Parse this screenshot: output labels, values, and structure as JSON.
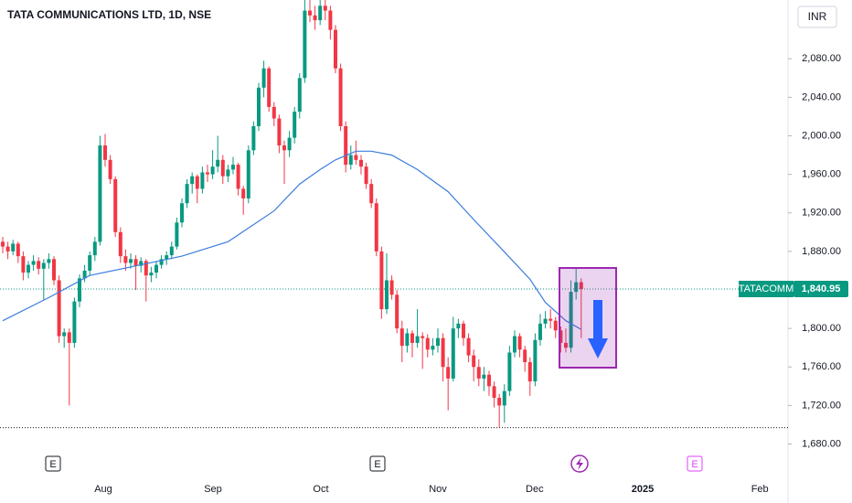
{
  "chart_data": {
    "type": "candlestick",
    "title": "TATA COMMUNICATIONS LTD, 1D, NSE",
    "currency": "INR",
    "up_color": "#089981",
    "down_color": "#f23645",
    "candles": [
      [
        1890,
        1895,
        1878,
        1885
      ],
      [
        1885,
        1890,
        1872,
        1880
      ],
      [
        1880,
        1892,
        1876,
        1888
      ],
      [
        1888,
        1890,
        1868,
        1875
      ],
      [
        1875,
        1880,
        1850,
        1858
      ],
      [
        1858,
        1870,
        1852,
        1866
      ],
      [
        1866,
        1876,
        1860,
        1870
      ],
      [
        1870,
        1874,
        1856,
        1862
      ],
      [
        1862,
        1872,
        1830,
        1868
      ],
      [
        1868,
        1878,
        1862,
        1872
      ],
      [
        1872,
        1875,
        1845,
        1850
      ],
      [
        1850,
        1855,
        1785,
        1792
      ],
      [
        1792,
        1800,
        1780,
        1796
      ],
      [
        1796,
        1800,
        1720,
        1785
      ],
      [
        1785,
        1832,
        1780,
        1828
      ],
      [
        1828,
        1856,
        1822,
        1852
      ],
      [
        1852,
        1866,
        1848,
        1860
      ],
      [
        1860,
        1880,
        1855,
        1876
      ],
      [
        1876,
        1895,
        1870,
        1890
      ],
      [
        1890,
        2000,
        1886,
        1990
      ],
      [
        1990,
        2002,
        1968,
        1975
      ],
      [
        1975,
        1980,
        1950,
        1955
      ],
      [
        1955,
        1958,
        1895,
        1900
      ],
      [
        1900,
        1905,
        1868,
        1875
      ],
      [
        1875,
        1882,
        1860,
        1868
      ],
      [
        1868,
        1878,
        1862,
        1872
      ],
      [
        1872,
        1876,
        1840,
        1865
      ],
      [
        1865,
        1874,
        1858,
        1870
      ],
      [
        1870,
        1872,
        1828,
        1855
      ],
      [
        1855,
        1864,
        1848,
        1858
      ],
      [
        1858,
        1870,
        1852,
        1866
      ],
      [
        1866,
        1876,
        1862,
        1872
      ],
      [
        1872,
        1880,
        1866,
        1876
      ],
      [
        1876,
        1890,
        1872,
        1885
      ],
      [
        1885,
        1915,
        1882,
        1910
      ],
      [
        1910,
        1935,
        1905,
        1930
      ],
      [
        1930,
        1955,
        1925,
        1950
      ],
      [
        1950,
        1962,
        1940,
        1958
      ],
      [
        1958,
        1960,
        1930,
        1945
      ],
      [
        1945,
        1968,
        1940,
        1962
      ],
      [
        1962,
        1970,
        1952,
        1960
      ],
      [
        1960,
        1985,
        1955,
        1968
      ],
      [
        1968,
        2000,
        1962,
        1975
      ],
      [
        1975,
        1980,
        1950,
        1958
      ],
      [
        1958,
        1970,
        1952,
        1965
      ],
      [
        1965,
        1978,
        1960,
        1970
      ],
      [
        1970,
        1972,
        1938,
        1945
      ],
      [
        1945,
        1948,
        1918,
        1935
      ],
      [
        1935,
        1990,
        1930,
        1985
      ],
      [
        1985,
        2015,
        1980,
        2010
      ],
      [
        2010,
        2055,
        2005,
        2050
      ],
      [
        2050,
        2078,
        2040,
        2070
      ],
      [
        2070,
        2072,
        2025,
        2030
      ],
      [
        2030,
        2035,
        2010,
        2018
      ],
      [
        2018,
        2022,
        1982,
        1990
      ],
      [
        1990,
        1995,
        1950,
        1985
      ],
      [
        1985,
        2005,
        1978,
        1998
      ],
      [
        1998,
        2030,
        1992,
        2025
      ],
      [
        2025,
        2065,
        2018,
        2060
      ],
      [
        2060,
        2141,
        2055,
        2130
      ],
      [
        2130,
        2141,
        2118,
        2125
      ],
      [
        2125,
        2135,
        2110,
        2120
      ],
      [
        2120,
        2141,
        2115,
        2135
      ],
      [
        2135,
        2141,
        2120,
        2130
      ],
      [
        2130,
        2135,
        2100,
        2110
      ],
      [
        2110,
        2115,
        2065,
        2070
      ],
      [
        2070,
        2075,
        2005,
        2010
      ],
      [
        2010,
        2015,
        1962,
        1970
      ],
      [
        1970,
        1990,
        1965,
        1980
      ],
      [
        1980,
        1995,
        1970,
        1975
      ],
      [
        1975,
        1980,
        1960,
        1968
      ],
      [
        1968,
        1972,
        1945,
        1950
      ],
      [
        1950,
        1955,
        1925,
        1930
      ],
      [
        1930,
        1935,
        1875,
        1880
      ],
      [
        1880,
        1885,
        1810,
        1820
      ],
      [
        1820,
        1878,
        1815,
        1850
      ],
      [
        1850,
        1855,
        1830,
        1835
      ],
      [
        1835,
        1840,
        1795,
        1800
      ],
      [
        1800,
        1808,
        1765,
        1782
      ],
      [
        1782,
        1800,
        1775,
        1795
      ],
      [
        1795,
        1798,
        1770,
        1785
      ],
      [
        1785,
        1820,
        1780,
        1792
      ],
      [
        1792,
        1796,
        1758,
        1790
      ],
      [
        1790,
        1794,
        1770,
        1778
      ],
      [
        1778,
        1790,
        1772,
        1782
      ],
      [
        1782,
        1800,
        1775,
        1790
      ],
      [
        1790,
        1795,
        1745,
        1760
      ],
      [
        1760,
        1770,
        1715,
        1748
      ],
      [
        1748,
        1812,
        1745,
        1800
      ],
      [
        1800,
        1810,
        1790,
        1805
      ],
      [
        1805,
        1808,
        1782,
        1790
      ],
      [
        1790,
        1795,
        1765,
        1772
      ],
      [
        1772,
        1778,
        1745,
        1760
      ],
      [
        1760,
        1768,
        1740,
        1748
      ],
      [
        1748,
        1760,
        1735,
        1752
      ],
      [
        1752,
        1756,
        1730,
        1740
      ],
      [
        1740,
        1745,
        1718,
        1728
      ],
      [
        1728,
        1732,
        1697,
        1720
      ],
      [
        1720,
        1742,
        1702,
        1735
      ],
      [
        1735,
        1782,
        1730,
        1775
      ],
      [
        1775,
        1798,
        1770,
        1792
      ],
      [
        1792,
        1795,
        1770,
        1778
      ],
      [
        1778,
        1782,
        1755,
        1765
      ],
      [
        1765,
        1770,
        1730,
        1745
      ],
      [
        1745,
        1795,
        1740,
        1788
      ],
      [
        1788,
        1815,
        1782,
        1805
      ],
      [
        1805,
        1818,
        1800,
        1810
      ],
      [
        1810,
        1820,
        1800,
        1808
      ],
      [
        1808,
        1812,
        1790,
        1798
      ],
      [
        1798,
        1802,
        1775,
        1785
      ],
      [
        1785,
        1800,
        1775,
        1780
      ],
      [
        1780,
        1850,
        1775,
        1838
      ],
      [
        1838,
        1862,
        1830,
        1848
      ],
      [
        1848,
        1852,
        1790,
        1840.95
      ]
    ],
    "moving_average": {
      "color": "#3b7ddd",
      "x": [
        0,
        9,
        17,
        26,
        35,
        44,
        53,
        58,
        62,
        65,
        69,
        72,
        76,
        81,
        87,
        92,
        97,
        103,
        106,
        110,
        113
      ],
      "values": [
        1808,
        1832,
        1855,
        1865,
        1875,
        1890,
        1922,
        1950,
        1965,
        1975,
        1984,
        1984,
        1980,
        1965,
        1942,
        1913,
        1885,
        1851,
        1827,
        1808,
        1799
      ]
    },
    "price_tag": {
      "name": "TATACOMM",
      "value": 1840.95,
      "label": "1,840.95"
    },
    "low_line": 1697,
    "xlim": [
      -0.536,
      153.4
    ],
    "xticks": [
      {
        "value": 19.64,
        "label": "Aug"
      },
      {
        "value": 41.07,
        "label": "Sep"
      },
      {
        "value": 62.14,
        "label": "Oct"
      },
      {
        "value": 85,
        "label": "Nov"
      },
      {
        "value": 103.9,
        "label": "Dec"
      },
      {
        "value": 125,
        "label": "2025"
      },
      {
        "value": 147.9,
        "label": "Feb"
      }
    ],
    "ylim": [
      1652,
      2141
    ],
    "yticks": [
      {
        "value": 1680,
        "label": "1,680.00"
      },
      {
        "value": 1720,
        "label": "1,720.00"
      },
      {
        "value": 1760,
        "label": "1,760.00"
      },
      {
        "value": 1800,
        "label": "1,800.00"
      },
      {
        "value": 1880,
        "label": "1,880.00"
      },
      {
        "value": 1920,
        "label": "1,920.00"
      },
      {
        "value": 1960,
        "label": "1,960.00"
      },
      {
        "value": 2000,
        "label": "2,000.00"
      },
      {
        "value": 2040,
        "label": "2,040.00"
      },
      {
        "value": 2080,
        "label": "2,080.00"
      }
    ],
    "events": [
      "E",
      "E",
      "E"
    ]
  }
}
